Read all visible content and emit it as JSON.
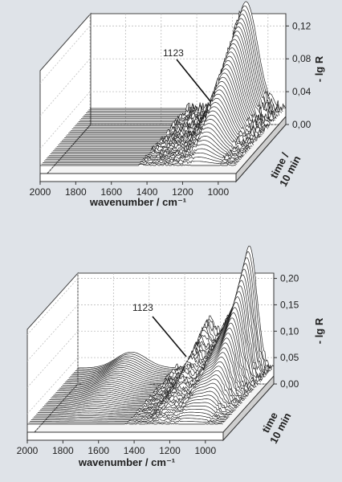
{
  "background_color": "#dfe3e8",
  "chart_data": [
    {
      "type": "waterfall",
      "xlabel": "wavenumber / cm⁻¹",
      "ylabel": "- lg R",
      "zlabel": "time / 10 min",
      "x_ticks": [
        "2000",
        "1800",
        "1600",
        "1400",
        "1200",
        "1000"
      ],
      "x_range": [
        2000,
        900
      ],
      "y_ticks": [
        "0,00",
        "0,04",
        "0,08",
        "0,12"
      ],
      "y_range": [
        0,
        0.135
      ],
      "annotation": "1123",
      "peaks": [
        {
          "center": 1123,
          "width": 90,
          "height": 0.13
        },
        {
          "center": 1260,
          "width": 70,
          "height": 0.008
        }
      ],
      "n_spectra": 40
    },
    {
      "type": "waterfall",
      "xlabel": "wavenumber / cm⁻¹",
      "ylabel": "- lg R",
      "zlabel": "time 10 min",
      "x_ticks": [
        "2000",
        "1800",
        "1600",
        "1400",
        "1200",
        "1000"
      ],
      "x_range": [
        2000,
        900
      ],
      "y_ticks": [
        "0,00",
        "0,05",
        "0,10",
        "0,15",
        "0,20"
      ],
      "y_range": [
        0,
        0.21
      ],
      "annotation": "1123",
      "peaks": [
        {
          "center": 1123,
          "width": 80,
          "height": 0.11
        },
        {
          "center": 1030,
          "width": 55,
          "height": 0.2
        },
        {
          "center": 1265,
          "width": 60,
          "height": 0.09
        },
        {
          "center": 1700,
          "width": 120,
          "height": 0.03
        }
      ],
      "n_spectra": 40
    }
  ]
}
